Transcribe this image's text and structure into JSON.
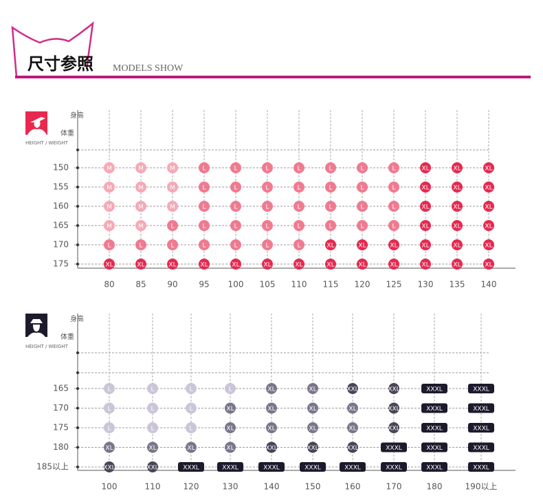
{
  "header": {
    "title": "尺寸参照",
    "subtitle": "MODELS SHOW"
  },
  "colors": {
    "M": "#f5a9b6",
    "L": "#f07a90",
    "XL": "#e6294f",
    "XXL": "#4a4556",
    "XXXL": "#1d1a2c"
  },
  "men_colors": {
    "L": "#cbc5d8",
    "XL": "#7b7589",
    "XXL": "#4a4556",
    "XXXL": "#1d1a2c"
  },
  "women": {
    "axis": {
      "height": "身高",
      "weight": "体重",
      "caption": "HEIGHT / WEIGHT"
    },
    "rows": [
      "150",
      "155",
      "160",
      "165",
      "170",
      "175"
    ],
    "cols": [
      "80",
      "85",
      "90",
      "95",
      "100",
      "105",
      "110",
      "115",
      "120",
      "125",
      "130",
      "135",
      "140"
    ],
    "cells": [
      [
        "M",
        "M",
        "M",
        "L",
        "L",
        "L",
        "L",
        "L",
        "L",
        "L",
        "XL",
        "XL",
        "XL"
      ],
      [
        "M",
        "M",
        "M",
        "L",
        "L",
        "L",
        "L",
        "L",
        "L",
        "L",
        "XL",
        "XL",
        "XL"
      ],
      [
        "M",
        "M",
        "M",
        "L",
        "L",
        "L",
        "L",
        "L",
        "L",
        "L",
        "XL",
        "XL",
        "XL"
      ],
      [
        "M",
        "M",
        "L",
        "L",
        "L",
        "L",
        "L",
        "L",
        "L",
        "L",
        "XL",
        "XL",
        "XL"
      ],
      [
        "L",
        "L",
        "L",
        "L",
        "L",
        "L",
        "L",
        "XL",
        "XL",
        "XL",
        "XL",
        "XL",
        "XL"
      ],
      [
        "XL",
        "XL",
        "XL",
        "XL",
        "XL",
        "XL",
        "XL",
        "XL",
        "XL",
        "XL",
        "XL",
        "XL",
        "XL"
      ]
    ]
  },
  "men": {
    "axis": {
      "height": "身高",
      "weight": "体重",
      "caption": "HEIGHT / WEIGHT"
    },
    "rows": [
      "165",
      "170",
      "175",
      "180",
      "185以上"
    ],
    "cols": [
      "100",
      "110",
      "120",
      "130",
      "140",
      "150",
      "160",
      "170",
      "180",
      "190以上"
    ],
    "cells": [
      [
        "L",
        "L",
        "L",
        "L",
        "XL",
        "XL",
        "XXL",
        "XXL",
        "XXXL",
        "XXXL"
      ],
      [
        "L",
        "L",
        "L",
        "XL",
        "XL",
        "XL",
        "XL",
        "XXL",
        "XXXL",
        "XXXL"
      ],
      [
        "L",
        "L",
        "L",
        "XL",
        "XL",
        "XL",
        "XL",
        "XXL",
        "XXXL",
        "XXXL"
      ],
      [
        "XL",
        "XL",
        "XL",
        "XL",
        "XXL",
        "XXL",
        "XXL",
        "XXXL",
        "XXXL",
        "XXXL"
      ],
      [
        "XXL",
        "XXL",
        "XXXL",
        "XXXL",
        "XXXL",
        "XXXL",
        "XXXL",
        "XXXL",
        "XXXL",
        "XXXL"
      ]
    ]
  }
}
